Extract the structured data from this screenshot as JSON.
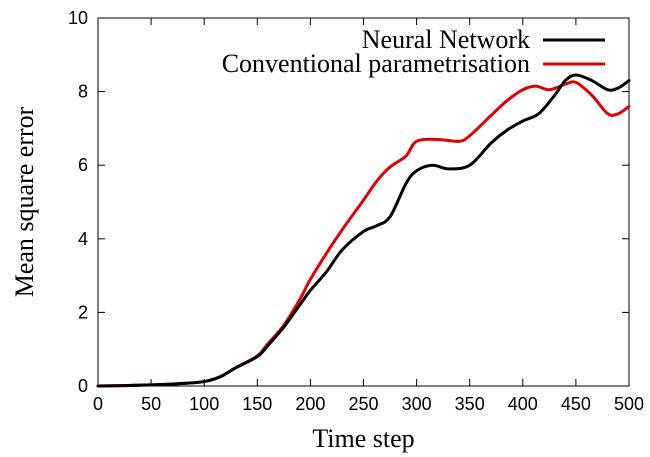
{
  "chart_data": {
    "type": "line",
    "title": "",
    "xlabel": "Time step",
    "ylabel": "Mean square error",
    "xlim": [
      0,
      500
    ],
    "ylim": [
      0,
      10
    ],
    "xticks": [
      "0",
      "50",
      "100",
      "150",
      "200",
      "250",
      "300",
      "350",
      "400",
      "450",
      "500"
    ],
    "yticks": [
      "0",
      "2",
      "4",
      "6",
      "8",
      "10"
    ],
    "grid": false,
    "legend_position": "top-right",
    "series": [
      {
        "name": "Neural Network",
        "color": "#000000",
        "x": [
          0,
          25,
          50,
          75,
          100,
          115,
          130,
          150,
          160,
          175,
          190,
          200,
          215,
          230,
          250,
          262,
          275,
          290,
          300,
          315,
          330,
          350,
          370,
          385,
          400,
          415,
          430,
          440,
          450,
          465,
          480,
          490,
          500
        ],
        "y": [
          0.0,
          0.01,
          0.03,
          0.06,
          0.12,
          0.25,
          0.5,
          0.8,
          1.1,
          1.6,
          2.2,
          2.6,
          3.1,
          3.7,
          4.2,
          4.35,
          4.6,
          5.5,
          5.85,
          6.0,
          5.9,
          6.0,
          6.6,
          6.95,
          7.2,
          7.4,
          7.9,
          8.3,
          8.45,
          8.3,
          8.05,
          8.1,
          8.3
        ]
      },
      {
        "name": "Conventional parametrisation",
        "color": "#e00000",
        "x": [
          0,
          25,
          50,
          75,
          100,
          115,
          130,
          150,
          160,
          175,
          190,
          200,
          215,
          230,
          250,
          262,
          275,
          290,
          300,
          320,
          340,
          350,
          370,
          385,
          400,
          412,
          425,
          440,
          450,
          465,
          480,
          490,
          500
        ],
        "y": [
          0.0,
          0.01,
          0.03,
          0.06,
          0.12,
          0.25,
          0.5,
          0.82,
          1.15,
          1.65,
          2.35,
          2.9,
          3.6,
          4.25,
          5.05,
          5.55,
          5.95,
          6.25,
          6.65,
          6.7,
          6.65,
          6.8,
          7.35,
          7.75,
          8.05,
          8.15,
          8.05,
          8.2,
          8.25,
          7.9,
          7.4,
          7.4,
          7.6
        ]
      }
    ]
  }
}
